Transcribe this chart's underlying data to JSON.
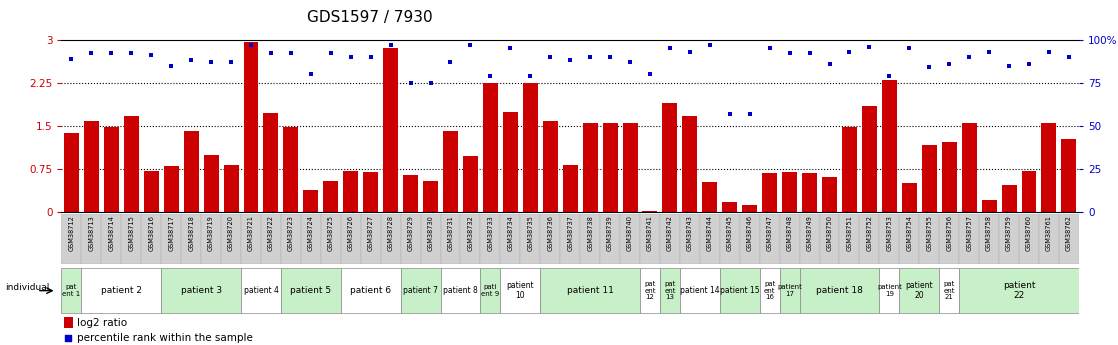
{
  "title": "GDS1597 / 7930",
  "samples": [
    "GSM38712",
    "GSM38713",
    "GSM38714",
    "GSM38715",
    "GSM38716",
    "GSM38717",
    "GSM38718",
    "GSM38719",
    "GSM38720",
    "GSM38721",
    "GSM38722",
    "GSM38723",
    "GSM38724",
    "GSM38725",
    "GSM38726",
    "GSM38727",
    "GSM38728",
    "GSM38729",
    "GSM38730",
    "GSM38731",
    "GSM38732",
    "GSM38733",
    "GSM38734",
    "GSM38735",
    "GSM38736",
    "GSM38737",
    "GSM38738",
    "GSM38739",
    "GSM38740",
    "GSM38741",
    "GSM38742",
    "GSM38743",
    "GSM38744",
    "GSM38745",
    "GSM38746",
    "GSM38747",
    "GSM38748",
    "GSM38749",
    "GSM38750",
    "GSM38751",
    "GSM38752",
    "GSM38753",
    "GSM38754",
    "GSM38755",
    "GSM38756",
    "GSM38757",
    "GSM38758",
    "GSM38759",
    "GSM38760",
    "GSM38761",
    "GSM38762"
  ],
  "log2_ratio": [
    1.38,
    1.58,
    1.48,
    1.68,
    0.72,
    0.8,
    1.42,
    1.0,
    0.82,
    2.96,
    1.72,
    1.48,
    0.38,
    0.55,
    0.72,
    0.7,
    2.85,
    0.65,
    0.55,
    1.42,
    0.98,
    2.24,
    1.75,
    2.24,
    1.58,
    0.82,
    1.55,
    1.55,
    1.55,
    0.02,
    1.9,
    1.68,
    0.52,
    0.18,
    0.12,
    0.68,
    0.7,
    0.68,
    0.62,
    1.48,
    1.85,
    2.3,
    0.5,
    1.16,
    1.22,
    1.55,
    0.22,
    0.48,
    0.72,
    1.55,
    1.28
  ],
  "percentile_rank": [
    89,
    92,
    92,
    92,
    91,
    85,
    88,
    87,
    87,
    97,
    92,
    92,
    80,
    92,
    90,
    90,
    97,
    75,
    75,
    87,
    97,
    79,
    95,
    79,
    90,
    88,
    90,
    90,
    87,
    80,
    95,
    93,
    97,
    57,
    57,
    95,
    92,
    92,
    86,
    93,
    96,
    79,
    95,
    84,
    86,
    90,
    93,
    85,
    86,
    93,
    90
  ],
  "patients": [
    {
      "label": "pat\nent 1",
      "start": 0,
      "end": 1,
      "color": "#c8f0c8"
    },
    {
      "label": "patient 2",
      "start": 1,
      "end": 5,
      "color": "#ffffff"
    },
    {
      "label": "patient 3",
      "start": 5,
      "end": 9,
      "color": "#c8f0c8"
    },
    {
      "label": "patient 4",
      "start": 9,
      "end": 11,
      "color": "#ffffff"
    },
    {
      "label": "patient 5",
      "start": 11,
      "end": 14,
      "color": "#c8f0c8"
    },
    {
      "label": "patient 6",
      "start": 14,
      "end": 17,
      "color": "#ffffff"
    },
    {
      "label": "patient 7",
      "start": 17,
      "end": 19,
      "color": "#c8f0c8"
    },
    {
      "label": "patient 8",
      "start": 19,
      "end": 21,
      "color": "#ffffff"
    },
    {
      "label": "pati\nent 9",
      "start": 21,
      "end": 22,
      "color": "#c8f0c8"
    },
    {
      "label": "patient\n10",
      "start": 22,
      "end": 24,
      "color": "#ffffff"
    },
    {
      "label": "patient 11",
      "start": 24,
      "end": 29,
      "color": "#c8f0c8"
    },
    {
      "label": "pat\nent\n12",
      "start": 29,
      "end": 30,
      "color": "#ffffff"
    },
    {
      "label": "pat\nent\n13",
      "start": 30,
      "end": 31,
      "color": "#c8f0c8"
    },
    {
      "label": "patient 14",
      "start": 31,
      "end": 33,
      "color": "#ffffff"
    },
    {
      "label": "patient 15",
      "start": 33,
      "end": 35,
      "color": "#c8f0c8"
    },
    {
      "label": "pat\nent\n16",
      "start": 35,
      "end": 36,
      "color": "#ffffff"
    },
    {
      "label": "patient\n17",
      "start": 36,
      "end": 37,
      "color": "#c8f0c8"
    },
    {
      "label": "patient 18",
      "start": 37,
      "end": 41,
      "color": "#c8f0c8"
    },
    {
      "label": "patient\n19",
      "start": 41,
      "end": 42,
      "color": "#ffffff"
    },
    {
      "label": "patient\n20",
      "start": 42,
      "end": 44,
      "color": "#c8f0c8"
    },
    {
      "label": "pat\nent\n21",
      "start": 44,
      "end": 45,
      "color": "#ffffff"
    },
    {
      "label": "patient\n22",
      "start": 45,
      "end": 51,
      "color": "#c8f0c8"
    }
  ],
  "bar_color": "#cc0000",
  "dot_color": "#0000cc",
  "yticks_left": [
    0,
    0.75,
    1.5,
    2.25,
    3.0
  ],
  "yticks_right": [
    0,
    25,
    50,
    75,
    100
  ],
  "ylim_left": [
    0,
    3.0
  ],
  "ylim_right": [
    0,
    100
  ]
}
